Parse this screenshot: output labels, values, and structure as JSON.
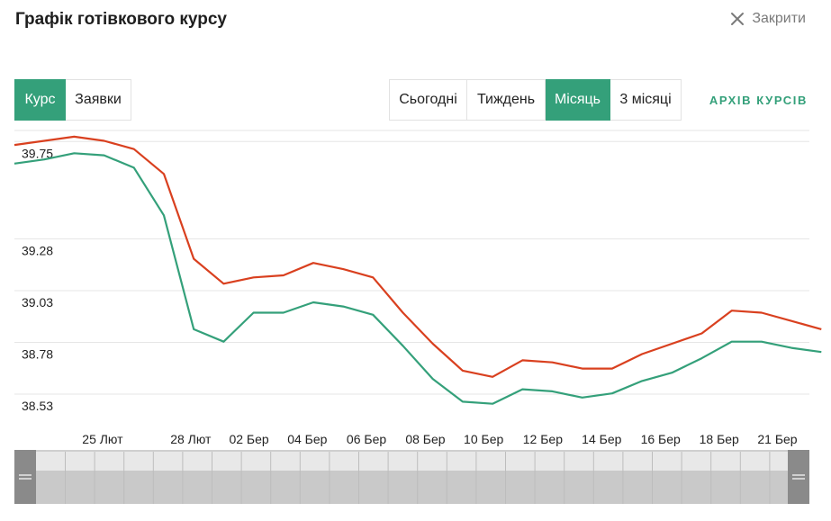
{
  "header": {
    "title": "Графік готівкового курсу",
    "close_label": "Закрити",
    "close_icon": "close-icon"
  },
  "left_tabs": [
    {
      "label": "Курс",
      "active": true
    },
    {
      "label": "Заявки",
      "active": false
    }
  ],
  "period_tabs": [
    {
      "label": "Сьогодні",
      "active": false
    },
    {
      "label": "Тиждень",
      "active": false
    },
    {
      "label": "Місяць",
      "active": true
    },
    {
      "label": "3 місяці",
      "active": false
    }
  ],
  "archive_link": "АРХІВ КУРСІВ",
  "colors": {
    "accent": "#34a07a",
    "sell_line": "#d9401f",
    "buy_line": "#34a07a"
  },
  "chart_data": {
    "type": "line",
    "ylim": [
      38.43,
      39.86
    ],
    "y_ticks": [
      39.75,
      39.28,
      39.03,
      38.78,
      38.53
    ],
    "y_tick_labels": [
      "39.75",
      "39.28",
      "39.03",
      "38.78",
      "38.53"
    ],
    "x_tick_labels": [
      "25 Лют",
      "28 Лют",
      "02 Бер",
      "04 Бер",
      "06 Бер",
      "08 Бер",
      "10 Бер",
      "12 Бер",
      "14 Бер",
      "16 Бер",
      "18 Бер",
      "21 Бер"
    ],
    "x_tick_index": [
      2.95,
      5.9,
      7.85,
      9.8,
      11.78,
      13.75,
      15.7,
      17.68,
      19.65,
      21.62,
      23.58,
      25.53
    ],
    "x_range": [
      0,
      26.6
    ],
    "grid": true,
    "series": [
      {
        "values": [
          39.79,
          39.81,
          39.83,
          39.81,
          39.77,
          39.65,
          39.24,
          39.12,
          39.15,
          39.16,
          39.22,
          39.19,
          39.15,
          38.98,
          38.83,
          38.7,
          38.67,
          38.75,
          38.74,
          38.71,
          38.71,
          38.78,
          38.83,
          38.88,
          38.99,
          38.98,
          38.94,
          38.9
        ]
      },
      {
        "values": [
          39.7,
          39.72,
          39.75,
          39.74,
          39.68,
          39.45,
          38.9,
          38.84,
          38.98,
          38.98,
          39.03,
          39.01,
          38.97,
          38.82,
          38.66,
          38.55,
          38.54,
          38.61,
          38.6,
          38.57,
          38.59,
          38.65,
          38.69,
          38.76,
          38.84,
          38.84,
          38.81,
          38.79
        ]
      }
    ]
  }
}
